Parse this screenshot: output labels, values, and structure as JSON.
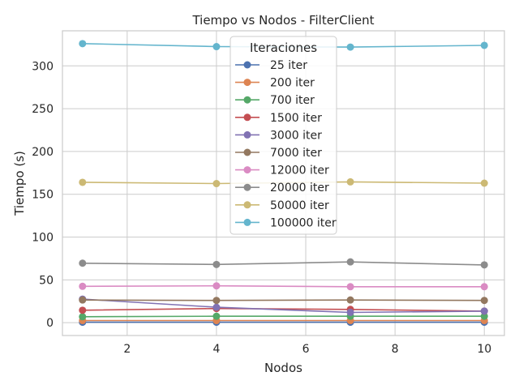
{
  "chart_data": {
    "type": "line",
    "title": "Tiempo vs Nodos - FilterClient",
    "xlabel": "Nodos",
    "ylabel": "Tiempo (s)",
    "xlim": [
      0.55,
      10.45
    ],
    "ylim": [
      -15,
      341
    ],
    "xticks": [
      2,
      4,
      6,
      8,
      10
    ],
    "yticks": [
      0,
      50,
      100,
      150,
      200,
      250,
      300
    ],
    "grid": true,
    "legend_title": "Iteraciones",
    "legend_position": "upper center",
    "x": [
      1,
      4,
      7,
      10
    ],
    "series": [
      {
        "name": "25 iter",
        "color": "#4c72b0",
        "values": [
          0.5,
          0.5,
          0.5,
          0.5
        ]
      },
      {
        "name": "200 iter",
        "color": "#dd8452",
        "values": [
          2.5,
          2.5,
          2.5,
          2.5
        ]
      },
      {
        "name": "700 iter",
        "color": "#55a868",
        "values": [
          7,
          7.5,
          7.5,
          7.5
        ]
      },
      {
        "name": "1500 iter",
        "color": "#c44e52",
        "values": [
          14.5,
          16.5,
          15.5,
          13.5
        ]
      },
      {
        "name": "3000 iter",
        "color": "#8172b3",
        "values": [
          27.5,
          18,
          12,
          13.5
        ]
      },
      {
        "name": "7000 iter",
        "color": "#937860",
        "values": [
          26.5,
          26,
          26.5,
          26
        ]
      },
      {
        "name": "12000 iter",
        "color": "#da8bc3",
        "values": [
          42.5,
          43,
          42,
          42
        ]
      },
      {
        "name": "20000 iter",
        "color": "#8c8c8c",
        "values": [
          69.5,
          68,
          71,
          67.5
        ]
      },
      {
        "name": "50000 iter",
        "color": "#ccb974",
        "values": [
          164,
          162.5,
          164.5,
          163
        ]
      },
      {
        "name": "100000 iter",
        "color": "#64b5cd",
        "values": [
          326,
          322.5,
          322,
          324
        ]
      }
    ]
  }
}
